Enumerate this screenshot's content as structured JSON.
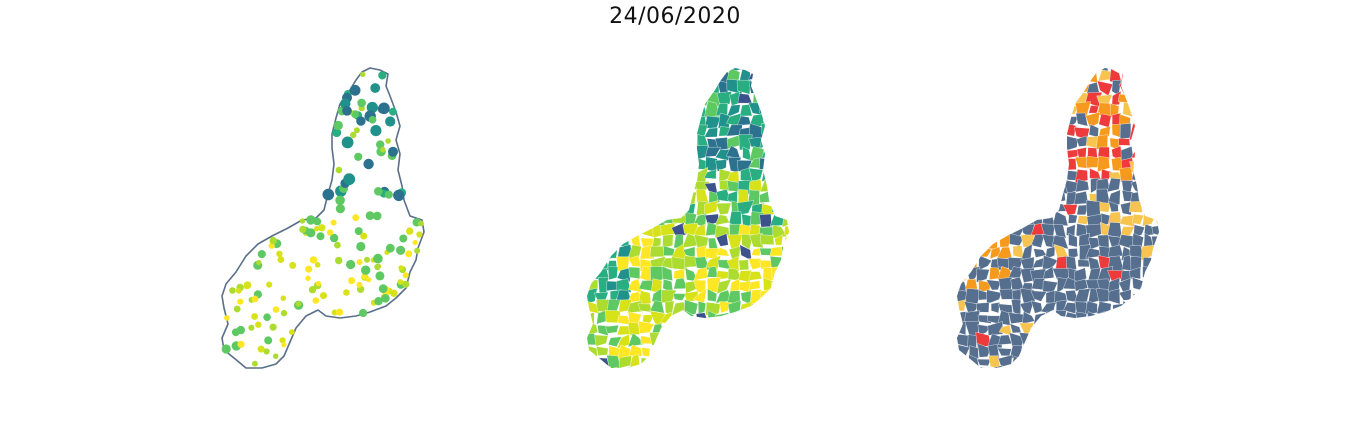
{
  "figure": {
    "title": "24/06/2020"
  },
  "panels": [
    {
      "name": "municipality-points",
      "kind": "proportional-symbols"
    },
    {
      "name": "municipality-choropleth",
      "kind": "choropleth"
    },
    {
      "name": "municipality-risk-categories",
      "kind": "categorical-choropleth"
    }
  ],
  "colors": {
    "outline": "#5a6f8a",
    "viridis": [
      "#3b528b",
      "#2c728e",
      "#21918c",
      "#28ae80",
      "#5ec962",
      "#addc30",
      "#d7e219",
      "#fde725"
    ],
    "categories": [
      "#566f8f",
      "#f69a1e",
      "#f7c44f",
      "#ee3a3a"
    ]
  }
}
